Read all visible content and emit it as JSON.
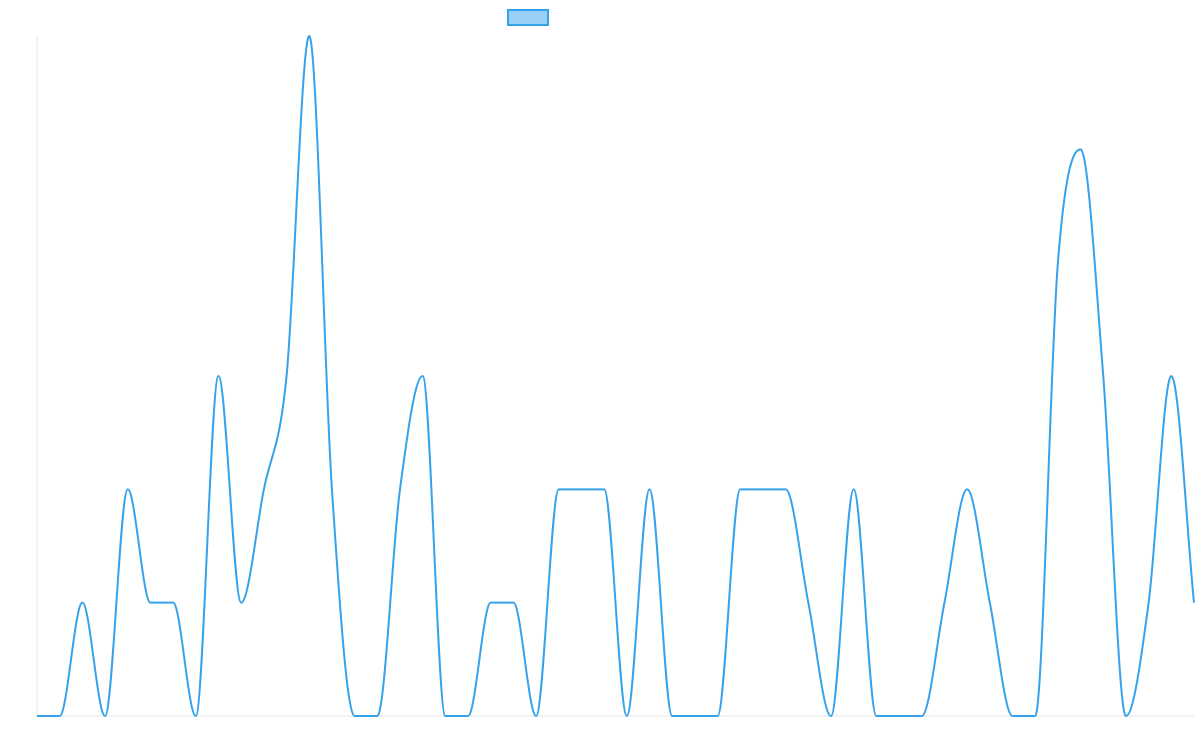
{
  "chart_data": {
    "type": "line",
    "categories": [
      null,
      null,
      null,
      null,
      null,
      null,
      null,
      null,
      null,
      null,
      null,
      null,
      null,
      null,
      null,
      null,
      null,
      null,
      null,
      null,
      null,
      null,
      null,
      null,
      null,
      null,
      null,
      null,
      null,
      null,
      null,
      null,
      null,
      null,
      null,
      null,
      null,
      null,
      null,
      null,
      null,
      null,
      null,
      null,
      null,
      null,
      null,
      null,
      null,
      null,
      null,
      null
    ],
    "series": [
      {
        "color": "#36a2eb",
        "values": [
          0,
          0,
          1,
          0,
          2,
          1,
          1,
          0,
          3,
          1,
          2,
          3,
          6,
          2,
          0,
          0,
          2,
          3,
          0,
          0,
          1,
          1,
          0,
          2,
          2,
          2,
          0,
          2,
          0,
          0,
          0,
          2,
          2,
          2,
          1,
          0,
          2,
          0,
          0,
          0,
          1,
          2,
          1,
          0,
          0,
          4,
          5,
          3,
          0,
          1,
          3,
          1
        ]
      }
    ],
    "ylim": [
      0,
      6
    ],
    "legend": "top"
  }
}
